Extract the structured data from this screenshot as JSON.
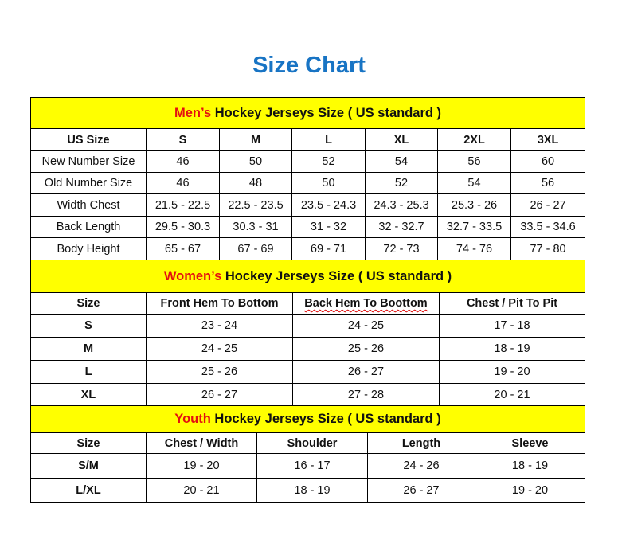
{
  "title": "Size Chart",
  "colors": {
    "title": "#1874c4",
    "banner_bg": "#ffff00",
    "highlight": "#e41010"
  },
  "mens": {
    "banner_highlight": "Men’s",
    "banner_rest": " Hockey Jerseys Size ( US standard )",
    "headers": [
      "US Size",
      "S",
      "M",
      "L",
      "XL",
      "2XL",
      "3XL"
    ],
    "rows": [
      [
        "New Number Size",
        "46",
        "50",
        "52",
        "54",
        "56",
        "60"
      ],
      [
        "Old Number Size",
        "46",
        "48",
        "50",
        "52",
        "54",
        "56"
      ],
      [
        "Width Chest",
        "21.5 - 22.5",
        "22.5 - 23.5",
        "23.5 - 24.3",
        "24.3 - 25.3",
        "25.3 - 26",
        "26 - 27"
      ],
      [
        "Back Length",
        "29.5 - 30.3",
        "30.3 - 31",
        "31 - 32",
        "32 - 32.7",
        "32.7 - 33.5",
        "33.5 - 34.6"
      ],
      [
        "Body Height",
        "65 - 67",
        "67 - 69",
        "69 - 71",
        "72 - 73",
        "74 - 76",
        "77 - 80"
      ]
    ]
  },
  "womens": {
    "banner_highlight": "Women’s",
    "banner_rest": " Hockey Jerseys Size ( US standard )",
    "headers": [
      "Size",
      "Front Hem To Bottom",
      "Back Hem To Boottom",
      "Chest / Pit To Pit"
    ],
    "rows": [
      [
        "S",
        "23 - 24",
        "24 - 25",
        "17 - 18"
      ],
      [
        "M",
        "24 - 25",
        "25 - 26",
        "18 - 19"
      ],
      [
        "L",
        "25 - 26",
        "26 - 27",
        "19 - 20"
      ],
      [
        "XL",
        "26 - 27",
        "27 - 28",
        "20 - 21"
      ]
    ]
  },
  "youth": {
    "banner_highlight": "Youth",
    "banner_rest": " Hockey Jerseys Size ( US standard )",
    "headers": [
      "Size",
      "Chest / Width",
      "Shoulder",
      "Length",
      "Sleeve"
    ],
    "rows": [
      [
        "S/M",
        "19 - 20",
        "16 - 17",
        "24 - 26",
        "18 - 19"
      ],
      [
        "L/XL",
        "20 - 21",
        "18 - 19",
        "26 - 27",
        "19 - 20"
      ]
    ]
  }
}
